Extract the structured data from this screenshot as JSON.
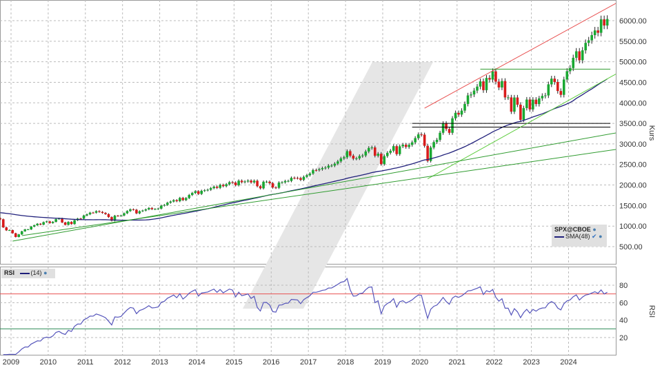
{
  "chart_data": {
    "type": "candlestick",
    "symbol": "SPX@CBOE",
    "indicator_label": "SMA(48)",
    "rsi": {
      "label": "RSI",
      "period_label": "(14)",
      "levels": [
        70,
        30
      ],
      "ticks": [
        "20",
        "40",
        "60",
        "80"
      ],
      "ylabel": "RSI"
    },
    "ylabel": "Kurs",
    "yticks": [
      "500.00",
      "1000.00",
      "1500.00",
      "2000.00",
      "2500.00",
      "3000.00",
      "3500.00",
      "4000.00",
      "4500.00",
      "5000.00",
      "5500.00",
      "6000.00"
    ],
    "xticks": [
      "2009",
      "2010",
      "2011",
      "2012",
      "2013",
      "2014",
      "2015",
      "2016",
      "2017",
      "2018",
      "2019",
      "2020",
      "2021",
      "2022",
      "2023",
      "2024"
    ],
    "start_month": "2008-09",
    "monthly_close": [
      1166,
      969,
      896,
      903,
      826,
      735,
      798,
      873,
      919,
      919,
      987,
      1021,
      1057,
      1036,
      1096,
      1115,
      1074,
      1104,
      1169,
      1187,
      1089,
      1031,
      1102,
      1049,
      1141,
      1183,
      1181,
      1258,
      1286,
      1327,
      1326,
      1364,
      1345,
      1321,
      1292,
      1219,
      1131,
      1253,
      1247,
      1258,
      1312,
      1366,
      1408,
      1398,
      1310,
      1362,
      1379,
      1407,
      1441,
      1412,
      1416,
      1426,
      1498,
      1515,
      1569,
      1598,
      1631,
      1606,
      1686,
      1633,
      1682,
      1757,
      1806,
      1848,
      1783,
      1859,
      1872,
      1884,
      1924,
      1960,
      1931,
      2003,
      1972,
      2018,
      2068,
      2059,
      1995,
      2105,
      2068,
      2086,
      2107,
      2063,
      2104,
      1972,
      1920,
      2079,
      2080,
      2044,
      1940,
      1932,
      2060,
      2065,
      2097,
      2099,
      2174,
      2171,
      2168,
      2126,
      2199,
      2239,
      2279,
      2364,
      2363,
      2384,
      2412,
      2423,
      2470,
      2472,
      2519,
      2575,
      2648,
      2674,
      2824,
      2714,
      2641,
      2648,
      2705,
      2718,
      2816,
      2902,
      2914,
      2712,
      2760,
      2507,
      2704,
      2784,
      2834,
      2946,
      2752,
      2942,
      2980,
      2926,
      2977,
      3038,
      3141,
      3231,
      3226,
      2954,
      2585,
      2912,
      3044,
      3100,
      3271,
      3500,
      3363,
      3270,
      3622,
      3756,
      3714,
      3811,
      3973,
      4181,
      4204,
      4298,
      4395,
      4523,
      4308,
      4605,
      4567,
      4766,
      4516,
      4374,
      4530,
      4132,
      4132,
      3785,
      4130,
      3955,
      3586,
      3872,
      4080,
      3840,
      4077,
      3970,
      4109,
      4169,
      4180,
      4450,
      4589,
      4508,
      4288,
      4194,
      4568,
      4770,
      4846,
      5096,
      5254,
      5036,
      5278,
      5460,
      5522,
      5648,
      5762,
      5705,
      6032,
      5882,
      6040
    ],
    "trendlines": [
      {
        "color": "#e85050",
        "from": [
          "2020-02",
          3870
        ],
        "to": [
          "2025-04",
          6420
        ]
      },
      {
        "color": "#2e9b2e",
        "from": [
          "2021-08",
          4820
        ],
        "to": [
          "2025-02",
          4820
        ]
      },
      {
        "color": "#000000",
        "from": [
          "2019-10",
          3500
        ],
        "to": [
          "2025-02",
          3500
        ]
      },
      {
        "color": "#000000",
        "from": [
          "2019-10",
          3410
        ],
        "to": [
          "2025-02",
          3410
        ]
      },
      {
        "color": "#5ccc3c",
        "from": [
          "2020-03",
          2150
        ],
        "to": [
          "2025-04",
          4700
        ]
      },
      {
        "color": "#2e9b2e",
        "from": [
          "2009-01",
          635
        ],
        "to": [
          "2025-04",
          3267
        ]
      },
      {
        "color": "#2e9b2e",
        "from": [
          "2009-04",
          769
        ],
        "to": [
          "2025-04",
          2865
        ]
      }
    ],
    "colors": {
      "up": "#1aa832",
      "down": "#d81c1c",
      "sma": "#1f1f7a",
      "rsi": "#5555bb",
      "overbought": "#e85050",
      "oversold": "#2e8b57"
    },
    "grid": true
  }
}
